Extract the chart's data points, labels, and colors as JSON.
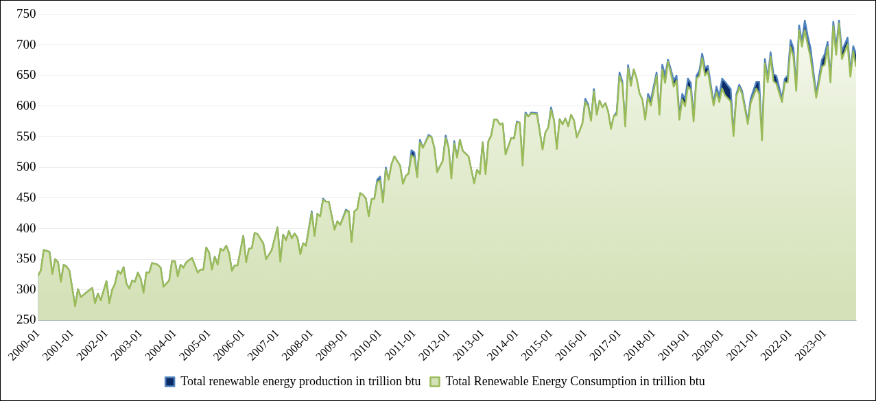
{
  "chart_data": {
    "type": "area",
    "x": [
      "2000-01",
      "2000-02",
      "2000-03",
      "2000-05",
      "2000-06",
      "2000-07",
      "2000-08",
      "2000-09",
      "2000-10",
      "2000-11",
      "2000-12",
      "2001-02",
      "2001-03",
      "2001-04",
      "2001-06",
      "2001-08",
      "2001-09",
      "2001-10",
      "2001-11",
      "2002-01",
      "2002-02",
      "2002-03",
      "2002-04",
      "2002-05",
      "2002-06",
      "2002-07",
      "2002-08",
      "2002-09",
      "2002-10",
      "2002-11",
      "2002-12",
      "2003-01",
      "2003-02",
      "2003-03",
      "2003-04",
      "2003-05",
      "2003-07",
      "2003-08",
      "2003-09",
      "2003-11",
      "2003-12",
      "2004-01",
      "2004-02",
      "2004-03",
      "2004-04",
      "2004-05",
      "2004-07",
      "2004-09",
      "2004-10",
      "2004-11",
      "2004-12",
      "2005-01",
      "2005-02",
      "2005-03",
      "2005-04",
      "2005-05",
      "2005-06",
      "2005-07",
      "2005-08",
      "2005-09",
      "2005-10",
      "2005-11",
      "2006-01",
      "2006-02",
      "2006-03",
      "2006-04",
      "2006-05",
      "2006-06",
      "2006-08",
      "2006-09",
      "2006-11",
      "2007-01",
      "2007-02",
      "2007-03",
      "2007-04",
      "2007-05",
      "2007-06",
      "2007-07",
      "2007-08",
      "2007-09",
      "2007-10",
      "2007-11",
      "2008-01",
      "2008-02",
      "2008-03",
      "2008-04",
      "2008-05",
      "2008-06",
      "2008-07",
      "2008-09",
      "2008-10",
      "2008-11",
      "2009-01",
      "2009-02",
      "2009-03",
      "2009-04",
      "2009-05",
      "2009-06",
      "2009-07",
      "2009-08",
      "2009-09",
      "2009-10",
      "2009-11",
      "2009-12",
      "2010-01",
      "2010-02",
      "2010-03",
      "2010-04",
      "2010-05",
      "2010-06",
      "2010-08",
      "2010-09",
      "2010-10",
      "2010-11",
      "2010-12",
      "2011-01",
      "2011-02",
      "2011-03",
      "2011-04",
      "2011-06",
      "2011-07",
      "2011-08",
      "2011-09",
      "2011-11",
      "2011-12",
      "2012-01",
      "2012-02",
      "2012-03",
      "2012-04",
      "2012-05",
      "2012-06",
      "2012-08",
      "2012-10",
      "2012-11",
      "2012-12",
      "2013-01",
      "2013-02",
      "2013-03",
      "2013-04",
      "2013-05",
      "2013-06",
      "2013-07",
      "2013-08",
      "2013-09",
      "2013-11",
      "2013-12",
      "2014-01",
      "2014-02",
      "2014-03",
      "2014-04",
      "2014-05",
      "2014-06",
      "2014-08",
      "2014-10",
      "2014-11",
      "2014-12",
      "2015-01",
      "2015-02",
      "2015-03",
      "2015-04",
      "2015-05",
      "2015-06",
      "2015-07",
      "2015-08",
      "2015-09",
      "2015-10",
      "2015-11",
      "2015-12",
      "2016-01",
      "2016-02",
      "2016-03",
      "2016-04",
      "2016-05",
      "2016-06",
      "2016-07",
      "2016-08",
      "2016-09",
      "2016-10",
      "2016-11",
      "2016-12",
      "2017-01",
      "2017-02",
      "2017-03",
      "2017-04",
      "2017-05",
      "2017-06",
      "2017-07",
      "2017-08",
      "2017-09",
      "2017-10",
      "2017-11",
      "2017-12",
      "2018-02",
      "2018-03",
      "2018-04",
      "2018-05",
      "2018-06",
      "2018-07",
      "2018-08",
      "2018-09",
      "2018-10",
      "2018-11",
      "2018-12",
      "2019-01",
      "2019-02",
      "2019-03",
      "2019-04",
      "2019-05",
      "2019-06",
      "2019-07",
      "2019-08",
      "2019-10",
      "2019-11",
      "2019-12",
      "2020-01",
      "2020-02",
      "2020-04",
      "2020-05",
      "2020-06",
      "2020-07",
      "2020-08",
      "2020-10",
      "2020-11",
      "2021-01",
      "2021-02",
      "2021-03",
      "2021-04",
      "2021-05",
      "2021-06",
      "2021-07",
      "2021-08",
      "2021-10",
      "2021-11",
      "2021-12",
      "2022-01",
      "2022-02",
      "2022-03",
      "2022-04",
      "2022-05",
      "2022-06",
      "2022-07",
      "2022-08",
      "2022-10",
      "2022-12",
      "2023-01",
      "2023-02",
      "2023-03",
      "2023-04",
      "2023-05",
      "2023-06",
      "2023-07",
      "2023-09",
      "2023-10",
      "2023-11",
      "2023-12"
    ],
    "series": [
      {
        "name": "Total renewable energy production in trillion btu",
        "color": "#0b2a66",
        "values": [
          323,
          332,
          365,
          362,
          326,
          350,
          345,
          313,
          341,
          338,
          331,
          273,
          301,
          288,
          296,
          303,
          278,
          294,
          283,
          314,
          278,
          300,
          310,
          331,
          326,
          337,
          310,
          302,
          315,
          313,
          328,
          318,
          295,
          328,
          328,
          344,
          341,
          336,
          305,
          315,
          347,
          347,
          322,
          341,
          336,
          345,
          352,
          328,
          333,
          333,
          369,
          361,
          333,
          354,
          341,
          367,
          364,
          372,
          360,
          331,
          340,
          340,
          388,
          345,
          367,
          368,
          393,
          391,
          376,
          350,
          365,
          402,
          346,
          390,
          381,
          396,
          384,
          392,
          385,
          358,
          376,
          372,
          428,
          388,
          424,
          420,
          449,
          444,
          444,
          398,
          412,
          406,
          431,
          428,
          378,
          428,
          432,
          458,
          455,
          449,
          420,
          448,
          449,
          480,
          485,
          443,
          500,
          480,
          505,
          518,
          503,
          473,
          486,
          490,
          528,
          525,
          484,
          545,
          532,
          553,
          550,
          532,
          492,
          511,
          552,
          533,
          482,
          543,
          516,
          545,
          527,
          518,
          474,
          496,
          489,
          541,
          489,
          543,
          552,
          578,
          578,
          570,
          572,
          521,
          548,
          547,
          575,
          573,
          503,
          590,
          583,
          590,
          589,
          529,
          557,
          565,
          598,
          577,
          530,
          579,
          570,
          580,
          567,
          586,
          577,
          549,
          560,
          572,
          612,
          603,
          576,
          628,
          586,
          609,
          598,
          605,
          591,
          563,
          584,
          590,
          655,
          640,
          567,
          667,
          638,
          660,
          645,
          621,
          611,
          578,
          620,
          610,
          655,
          586,
          668,
          650,
          676,
          660,
          642,
          650,
          585,
          620,
          612,
          645,
          638,
          580,
          650,
          658,
          686,
          662,
          666,
          605,
          632,
          616,
          645,
          640,
          628,
          555,
          620,
          635,
          625,
          575,
          612,
          640,
          640,
          548,
          677,
          645,
          688,
          652,
          650,
          612,
          645,
          650,
          708,
          695,
          630,
          732,
          705,
          740,
          715,
          695,
          620,
          676,
          685,
          705,
          645,
          738,
          695,
          740,
          690,
          712,
          655,
          698,
          685
        ]
      },
      {
        "name": "Total Renewable Energy Consumption in trillion btu",
        "color": "#9bbb59",
        "values": [
          323,
          332,
          365,
          362,
          326,
          350,
          345,
          313,
          341,
          338,
          331,
          273,
          301,
          288,
          296,
          303,
          278,
          294,
          283,
          314,
          278,
          300,
          310,
          331,
          326,
          337,
          310,
          302,
          315,
          313,
          328,
          318,
          295,
          328,
          328,
          344,
          341,
          336,
          305,
          315,
          347,
          347,
          322,
          341,
          336,
          345,
          352,
          328,
          333,
          333,
          369,
          361,
          333,
          354,
          341,
          367,
          364,
          372,
          360,
          331,
          340,
          340,
          388,
          345,
          367,
          368,
          393,
          391,
          376,
          350,
          365,
          402,
          346,
          390,
          381,
          396,
          384,
          392,
          385,
          358,
          376,
          372,
          426,
          388,
          424,
          420,
          447,
          444,
          444,
          398,
          412,
          406,
          429,
          428,
          378,
          428,
          432,
          458,
          455,
          449,
          420,
          448,
          449,
          476,
          479,
          443,
          497,
          480,
          505,
          518,
          503,
          473,
          486,
          490,
          520,
          516,
          484,
          541,
          532,
          551,
          550,
          532,
          492,
          511,
          548,
          533,
          482,
          539,
          516,
          545,
          527,
          518,
          474,
          496,
          489,
          541,
          489,
          543,
          552,
          578,
          578,
          570,
          572,
          521,
          548,
          547,
          573,
          573,
          503,
          587,
          583,
          588,
          587,
          529,
          557,
          565,
          594,
          577,
          530,
          579,
          570,
          580,
          567,
          586,
          577,
          549,
          560,
          572,
          607,
          600,
          576,
          624,
          586,
          609,
          598,
          605,
          591,
          563,
          584,
          586,
          649,
          636,
          567,
          662,
          633,
          660,
          645,
          621,
          611,
          578,
          614,
          601,
          650,
          586,
          660,
          638,
          673,
          654,
          632,
          642,
          578,
          611,
          600,
          632,
          627,
          575,
          645,
          650,
          679,
          650,
          657,
          601,
          623,
          607,
          629,
          618,
          608,
          551,
          616,
          631,
          620,
          571,
          605,
          629,
          620,
          544,
          670,
          639,
          681,
          641,
          637,
          607,
          639,
          639,
          697,
          681,
          625,
          724,
          697,
          724,
          701,
          680,
          614,
          664,
          668,
          697,
          639,
          731,
          684,
          735,
          677,
          701,
          648,
          690,
          664
        ]
      }
    ],
    "xlim": [
      "2000-01",
      "2023-12"
    ],
    "xticks": [
      "2000-01",
      "2001-01",
      "2002-01",
      "2003-01",
      "2004-01",
      "2005-01",
      "2006-01",
      "2007-01",
      "2008-01",
      "2009-01",
      "2010-01",
      "2011-01",
      "2012-01",
      "2013-01",
      "2014-01",
      "2015-01",
      "2016-01",
      "2017-01",
      "2018-01",
      "2019-01",
      "2020-01",
      "2021-01",
      "2022-01",
      "2023-01"
    ],
    "ylim": [
      250,
      750
    ],
    "yticks": [
      250,
      300,
      350,
      400,
      450,
      500,
      550,
      600,
      650,
      700,
      750
    ],
    "grid": "y",
    "legend": "bottom"
  }
}
